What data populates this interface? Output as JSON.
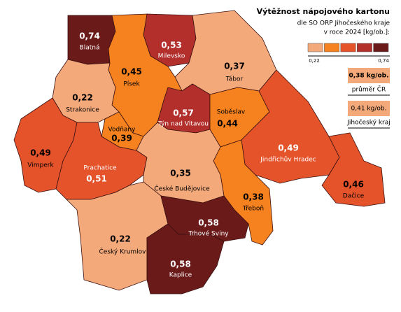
{
  "title": "Výtěžnost nápojového kartonu",
  "subtitle": [
    "dle SO ORP Jihočeského kraje",
    "v roce 2024 [kg/ob.]:"
  ],
  "legend": {
    "colors": [
      "#f4a97b",
      "#f5821f",
      "#e5532b",
      "#b22f2c",
      "#6b1a1a"
    ],
    "min": {
      "value": 0.22,
      "label": "0,22"
    },
    "max": {
      "value": 0.74,
      "label": "0,74"
    }
  },
  "references": [
    {
      "value": 0.38,
      "label": "0,38 kg/ob.",
      "name": "průměr ČR"
    },
    {
      "value": 0.41,
      "label": "0,41 kg/ob.",
      "name": "Jihočeský kraj"
    }
  ],
  "regions": {
    "names": [
      "Blatná",
      "Milevsko",
      "Tábor",
      "Písek",
      "Strakonice",
      "Vodňany",
      "Týn nad Vltavou",
      "Soběslav",
      "Jindřichův Hradec",
      "Dačice",
      "Třeboň",
      "Vimperk",
      "Prachatice",
      "České Budějovice",
      "Český Krumlov",
      "Trhové Sviny",
      "Kaplice"
    ],
    "values": [
      0.74,
      0.53,
      0.37,
      0.45,
      0.22,
      0.39,
      0.57,
      0.44,
      0.49,
      0.46,
      0.38,
      0.49,
      0.51,
      0.35,
      0.22,
      0.58,
      0.58
    ],
    "value_labels": [
      "0,74",
      "0,53",
      "0,37",
      "0,45",
      "0,22",
      "0,39",
      "0,57",
      "0,44",
      "0,49",
      "0,46",
      "0,38",
      "0,49",
      "0,51",
      "0,35",
      "0,22",
      "0,58",
      "0,58"
    ],
    "colors": [
      "#6b1a1a",
      "#b22f2c",
      "#f4a97b",
      "#f5821f",
      "#f4a97b",
      "#f5821f",
      "#b22f2c",
      "#f5821f",
      "#e5532b",
      "#e5532b",
      "#f5821f",
      "#e5532b",
      "#e5532b",
      "#f4a97b",
      "#f4a97b",
      "#6b1a1a",
      "#6b1a1a"
    ]
  }
}
